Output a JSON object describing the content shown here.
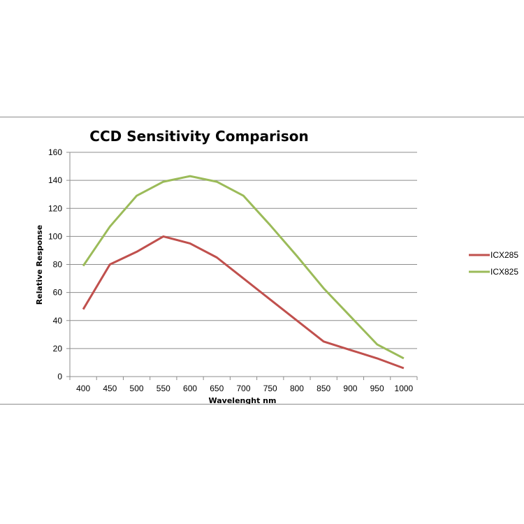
{
  "chart_data": {
    "type": "line",
    "title": "CCD Sensitivity Comparison",
    "xlabel": "Wavelenght nm",
    "ylabel": "Relative Response",
    "categories": [
      "400",
      "450",
      "500",
      "550",
      "600",
      "650",
      "700",
      "750",
      "800",
      "850",
      "900",
      "950",
      "1000"
    ],
    "ylim": [
      0,
      160
    ],
    "yticks": [
      0,
      20,
      40,
      60,
      80,
      100,
      120,
      140,
      160
    ],
    "grid": "horizontal",
    "legend_position": "right",
    "series": [
      {
        "name": "ICX285",
        "color": "#c0504d",
        "values": [
          48,
          80,
          89,
          100,
          95,
          85,
          70,
          55,
          40,
          25,
          19,
          13,
          6
        ]
      },
      {
        "name": "ICX825",
        "color": "#9bbb59",
        "values": [
          79,
          107,
          129,
          139,
          143,
          139,
          129,
          108,
          86,
          63,
          43,
          23,
          13
        ]
      }
    ]
  }
}
